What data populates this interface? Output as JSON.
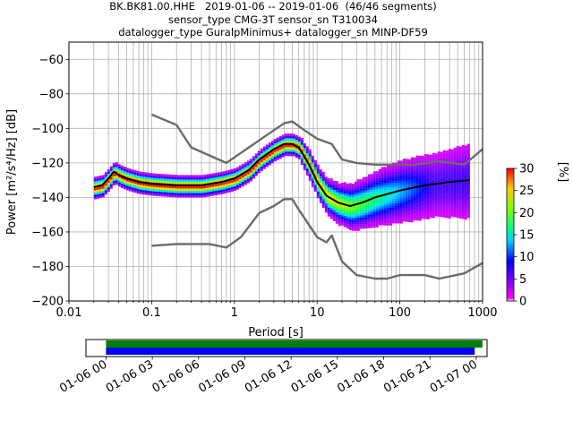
{
  "title_lines": [
    "BK.BK81.00.HHE   2019-01-06 -- 2019-01-06  (46/46 segments)",
    "sensor_type CMG-3T sensor_sn T310034",
    "datalogger_type GuralpMinimus+ datalogger_sn MINP-DF59"
  ],
  "chart_data": {
    "type": "heatmap",
    "xlabel": "Period [s]",
    "ylabel": "Power [m²/s⁴/Hz] [dB]",
    "x_scale": "log",
    "xlim": [
      0.01,
      1000
    ],
    "ylim": [
      -200,
      -50
    ],
    "x_ticks": [
      0.01,
      0.1,
      1,
      10,
      100,
      1000
    ],
    "x_tick_labels": [
      "0.01",
      "0.1",
      "1",
      "10",
      "100",
      "1000"
    ],
    "y_ticks": [
      -200,
      -180,
      -160,
      -140,
      -120,
      -100,
      -80,
      -60
    ],
    "grid": true,
    "colorbar": {
      "label": "[%]",
      "range": [
        0,
        30
      ],
      "ticks": [
        0,
        5,
        10,
        15,
        20,
        25,
        30
      ]
    },
    "series": [
      {
        "color": "#6b6b6b",
        "x": [
          0.1,
          0.2,
          0.3,
          0.8,
          1.5,
          3,
          4,
          5,
          7,
          10,
          15,
          20,
          30,
          50,
          70,
          100,
          150,
          300,
          600,
          1000
        ],
        "y": [
          -92,
          -98,
          -111,
          -120,
          -111,
          -101,
          -97,
          -96,
          -101,
          -106,
          -109,
          -118,
          -120,
          -121,
          -121,
          -121,
          -121,
          -119,
          -121,
          -112
        ]
      },
      {
        "color": "#6b6b6b",
        "x": [
          0.1,
          0.2,
          0.5,
          0.8,
          1.2,
          2,
          3,
          4,
          5,
          6,
          8,
          10,
          13,
          15,
          20,
          30,
          50,
          70,
          100,
          200,
          300,
          600,
          1000
        ],
        "y": [
          -168,
          -167,
          -167,
          -169,
          -163,
          -149,
          -145,
          -141,
          -141,
          -147,
          -156,
          -163,
          -166,
          -162,
          -177,
          -185,
          -187,
          -187,
          -185,
          -185,
          -187,
          -184,
          -178
        ]
      },
      {
        "color": "#000000",
        "x": [
          0.02,
          0.025,
          0.03,
          0.035,
          0.04,
          0.05,
          0.07,
          0.1,
          0.2,
          0.4,
          0.7,
          1,
          1.5,
          2,
          3,
          4,
          5,
          6,
          8,
          10,
          13,
          18,
          25,
          35,
          50,
          100,
          200,
          400,
          700
        ],
        "y": [
          -134,
          -133,
          -129,
          -125,
          -127,
          -129,
          -131,
          -132,
          -133,
          -133,
          -131,
          -129,
          -124,
          -118,
          -112,
          -109,
          -109,
          -111,
          -121,
          -131,
          -139,
          -143,
          -145,
          -143,
          -140,
          -136,
          -133,
          -131,
          -130
        ]
      }
    ],
    "time_bar": {
      "tick_labels": [
        "01-06 00",
        "01-06 03",
        "01-06 06",
        "01-06 09",
        "01-06 12",
        "01-06 15",
        "01-06 18",
        "01-06 21",
        "01-07 00"
      ],
      "range_hours": [
        -1.3,
        24.7
      ],
      "bars": [
        {
          "color": "#008000",
          "start_hour": 0,
          "end_hour": 24.4
        },
        {
          "color": "#0000ff",
          "start_hour": 0,
          "end_hour": 23.9
        }
      ]
    }
  }
}
